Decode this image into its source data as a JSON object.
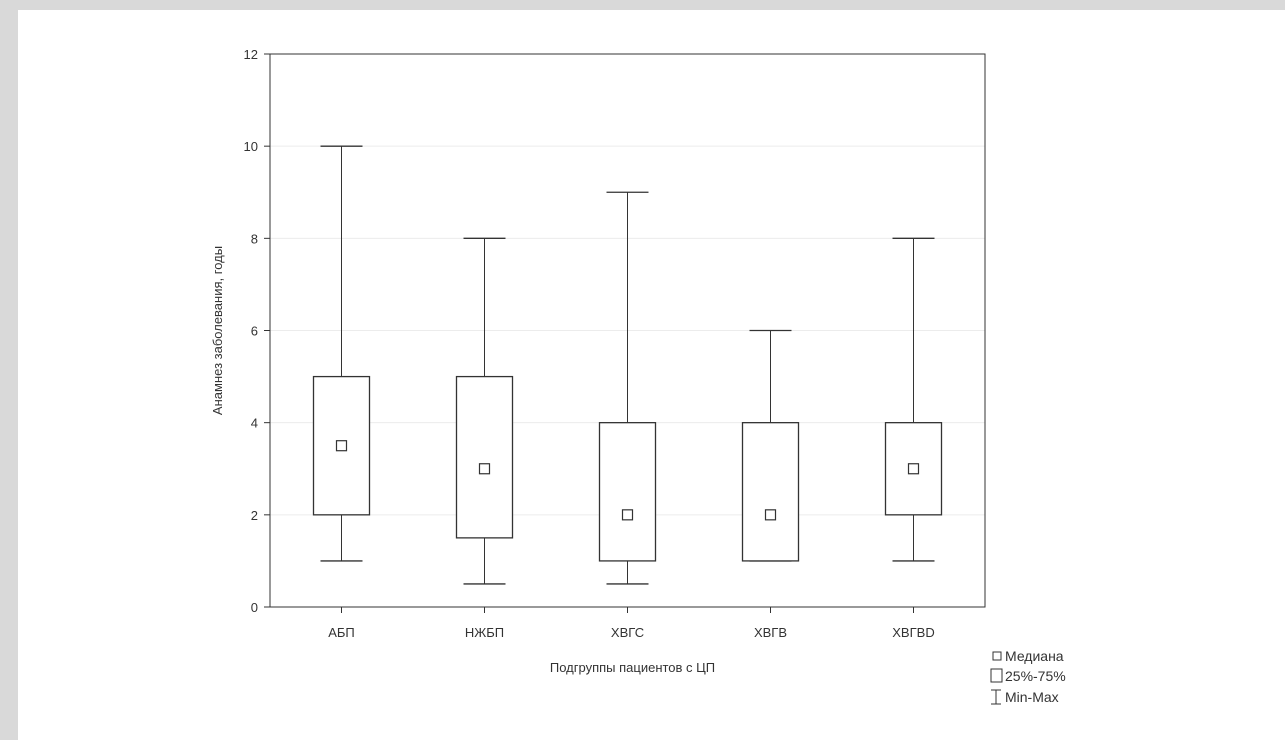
{
  "chart_data": {
    "type": "boxplot",
    "title": "",
    "xlabel": "Подгруппы пациентов с ЦП",
    "ylabel": "Анамнез заболевания, годы",
    "ylim": [
      0,
      12
    ],
    "yticks": [
      0,
      2,
      4,
      6,
      8,
      10,
      12
    ],
    "grid": true,
    "categories": [
      "АБП",
      "НЖБП",
      "ХВГС",
      "ХВГВ",
      "ХВГBD"
    ],
    "boxes": [
      {
        "min": 1,
        "q1": 2,
        "median": 3.5,
        "q3": 5,
        "max": 10
      },
      {
        "min": 0.5,
        "q1": 1.5,
        "median": 3,
        "q3": 5,
        "max": 8
      },
      {
        "min": 0.5,
        "q1": 1,
        "median": 2,
        "q3": 4,
        "max": 9
      },
      {
        "min": 1,
        "q1": 1,
        "median": 2,
        "q3": 4,
        "max": 6
      },
      {
        "min": 1,
        "q1": 2,
        "median": 3,
        "q3": 4,
        "max": 8
      }
    ],
    "legend": {
      "placement": "bottom-right",
      "median": "Медиана",
      "box": "25%-75%",
      "whisker": "Min-Max"
    }
  }
}
